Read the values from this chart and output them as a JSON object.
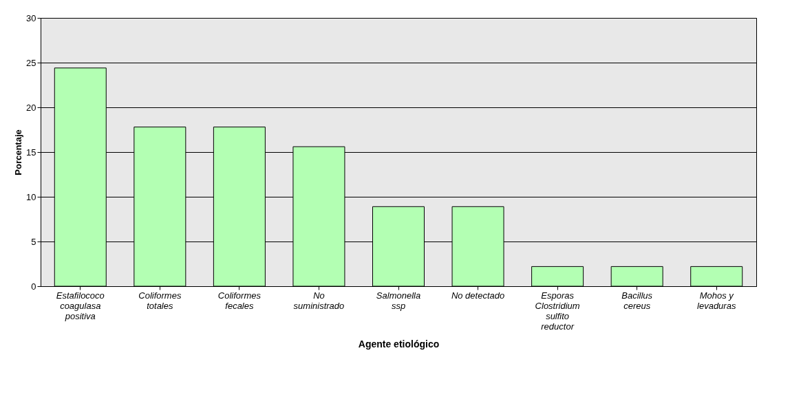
{
  "chart_data": {
    "type": "bar",
    "xlabel": "Agente etiológico",
    "ylabel": "Porcentaje",
    "categories": [
      "Estafilococo coagulasa positiva",
      "Coliformes totales",
      "Coliformes fecales",
      "No suministrado",
      "Salmonella ssp",
      "No detectado",
      "Esporas Clostridium sulfito reductor",
      "Bacillus cereus",
      "Mohos y levaduras"
    ],
    "values": [
      24.4,
      17.8,
      17.8,
      15.6,
      8.9,
      8.9,
      2.2,
      2.2,
      2.2
    ],
    "color": "#b3ffb3",
    "ylim": [
      0,
      30
    ],
    "yticks": [
      0,
      5,
      10,
      15,
      20,
      25,
      30
    ],
    "grid": "y"
  }
}
